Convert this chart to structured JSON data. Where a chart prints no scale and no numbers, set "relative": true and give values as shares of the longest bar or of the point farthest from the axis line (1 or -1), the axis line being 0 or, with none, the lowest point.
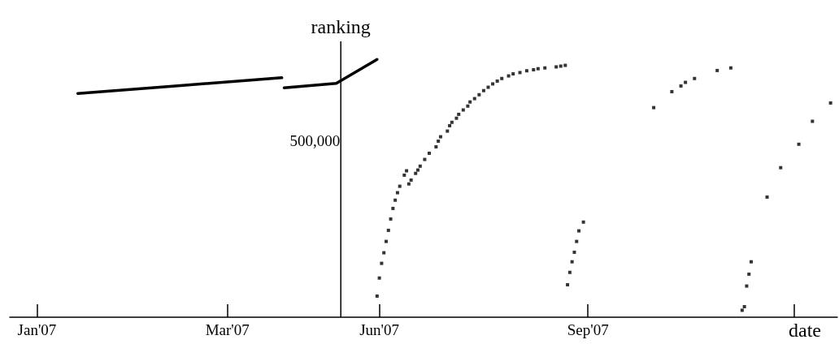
{
  "chart_data": {
    "type": "scatter",
    "relative": true,
    "xlabel": "date",
    "ylabel": "ranking",
    "marker": "square",
    "xlim": [
      "2006-12-20",
      "2007-12-20"
    ],
    "xticks": [
      {
        "value": "2007-01-01",
        "label": "Jan'07"
      },
      {
        "value": "2007-03-26",
        "label": "Mar'07"
      },
      {
        "value": "2007-06-01",
        "label": "Jun'07"
      },
      {
        "value": "2007-09-01",
        "label": "Sep'07"
      },
      {
        "value": "2007-12-01",
        "label": null
      }
    ],
    "ref_lines": [
      {
        "axis": "x",
        "value": "2007-05-15",
        "color": "#000000"
      }
    ],
    "annotations": [
      "500,000"
    ],
    "series": [
      {
        "type": "line",
        "marker": "none",
        "color": "#000000",
        "x": [
          "2007-01-19",
          "2007-03-03",
          "2007-04-19"
        ],
        "values": [
          0.868,
          0.897,
          0.929
        ]
      },
      {
        "type": "line",
        "marker": "none",
        "color": "#000000",
        "x": [
          "2007-04-20",
          "2007-05-13",
          "2007-05-31"
        ],
        "values": [
          0.89,
          0.907,
          1
        ]
      },
      {
        "color": "#000000",
        "x": [
          "2007-05-31",
          "2007-06-01",
          "2007-06-02",
          "2007-06-03",
          "2007-06-04",
          "2007-06-05",
          "2007-06-06",
          "2007-06-07",
          "2007-06-08",
          "2007-06-09",
          "2007-06-10",
          "2007-06-12",
          "2007-06-13",
          "2007-06-14",
          "2007-06-15",
          "2007-06-17",
          "2007-06-18",
          "2007-06-19",
          "2007-06-21",
          "2007-06-23",
          "2007-06-26",
          "2007-06-27",
          "2007-06-28",
          "2007-07-01",
          "2007-07-02",
          "2007-07-03",
          "2007-07-05",
          "2007-07-06",
          "2007-07-08",
          "2007-07-10",
          "2007-07-11",
          "2007-07-13",
          "2007-07-15",
          "2007-07-17",
          "2007-07-19",
          "2007-07-21",
          "2007-07-23",
          "2007-07-25",
          "2007-07-28",
          "2007-07-30",
          "2007-08-02",
          "2007-08-05",
          "2007-08-08",
          "2007-08-10",
          "2007-08-13",
          "2007-08-18",
          "2007-08-20",
          "2007-08-22",
          "2007-08-23",
          "2007-08-24",
          "2007-08-25",
          "2007-08-26",
          "2007-08-27",
          "2007-08-28",
          "2007-08-30",
          "2007-09-30",
          "2007-10-08",
          "2007-10-12",
          "2007-10-14",
          "2007-10-18",
          "2007-10-28",
          "2007-11-03",
          "2007-11-08",
          "2007-11-09",
          "2007-11-10",
          "2007-11-11",
          "2007-11-12",
          "2007-11-19",
          "2007-11-25",
          "2007-12-03",
          "2007-12-09",
          "2007-12-17"
        ],
        "values": [
          0.082,
          0.152,
          0.209,
          0.25,
          0.294,
          0.337,
          0.381,
          0.422,
          0.454,
          0.483,
          0.508,
          0.551,
          0.568,
          0.517,
          0.532,
          0.558,
          0.571,
          0.586,
          0.612,
          0.636,
          0.661,
          0.683,
          0.7,
          0.722,
          0.743,
          0.756,
          0.772,
          0.787,
          0.804,
          0.819,
          0.835,
          0.848,
          0.863,
          0.879,
          0.892,
          0.905,
          0.916,
          0.926,
          0.936,
          0.944,
          0.949,
          0.956,
          0.96,
          0.964,
          0.967,
          0.971,
          0.974,
          0.977,
          0.126,
          0.174,
          0.215,
          0.252,
          0.294,
          0.335,
          0.369,
          0.813,
          0.875,
          0.897,
          0.911,
          0.926,
          0.957,
          0.967,
          0.027,
          0.041,
          0.121,
          0.167,
          0.215,
          0.466,
          0.58,
          0.671,
          0.76,
          0.831
        ]
      }
    ]
  }
}
